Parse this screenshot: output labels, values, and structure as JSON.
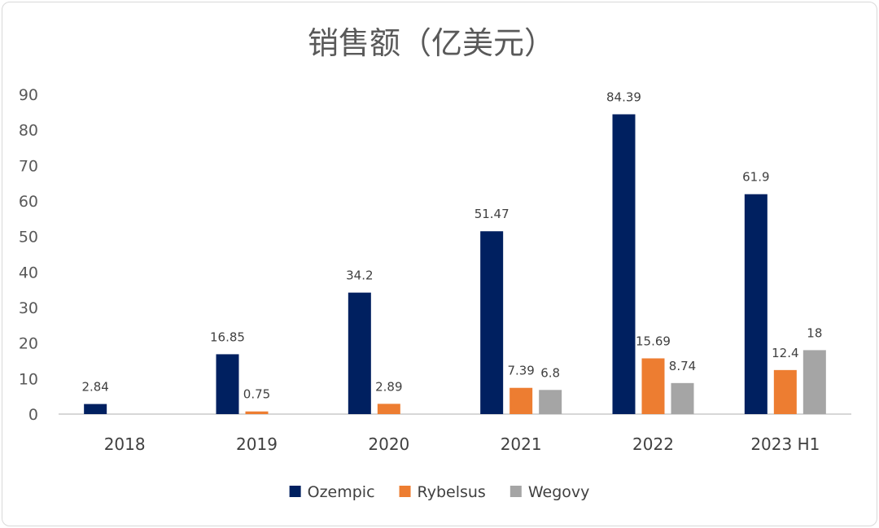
{
  "chart_data": {
    "type": "bar",
    "title": "销售额（亿美元）",
    "categories": [
      "2018",
      "2019",
      "2020",
      "2021",
      "2022",
      "2023 H1"
    ],
    "series": [
      {
        "name": "Ozempic",
        "color": "#002060",
        "values": [
          2.84,
          16.85,
          34.2,
          51.47,
          84.39,
          61.9
        ],
        "labels": [
          "2.84",
          "16.85",
          "34.2",
          "51.47",
          "84.39",
          "61.9"
        ]
      },
      {
        "name": "Rybelsus",
        "color": "#ED7D31",
        "values": [
          null,
          0.75,
          2.89,
          7.39,
          15.69,
          12.4
        ],
        "labels": [
          null,
          "0.75",
          "2.89",
          "7.39",
          "15.69",
          "12.4"
        ]
      },
      {
        "name": "Wegovy",
        "color": "#A5A5A5",
        "values": [
          null,
          null,
          null,
          6.8,
          8.74,
          18
        ],
        "labels": [
          null,
          null,
          null,
          "6.8",
          "8.74",
          "18"
        ]
      }
    ],
    "yticks": [
      "0",
      "10",
      "20",
      "30",
      "40",
      "50",
      "60",
      "70",
      "80",
      "90"
    ],
    "ylim": [
      0,
      90
    ],
    "grid": false,
    "legend_position": "bottom"
  }
}
